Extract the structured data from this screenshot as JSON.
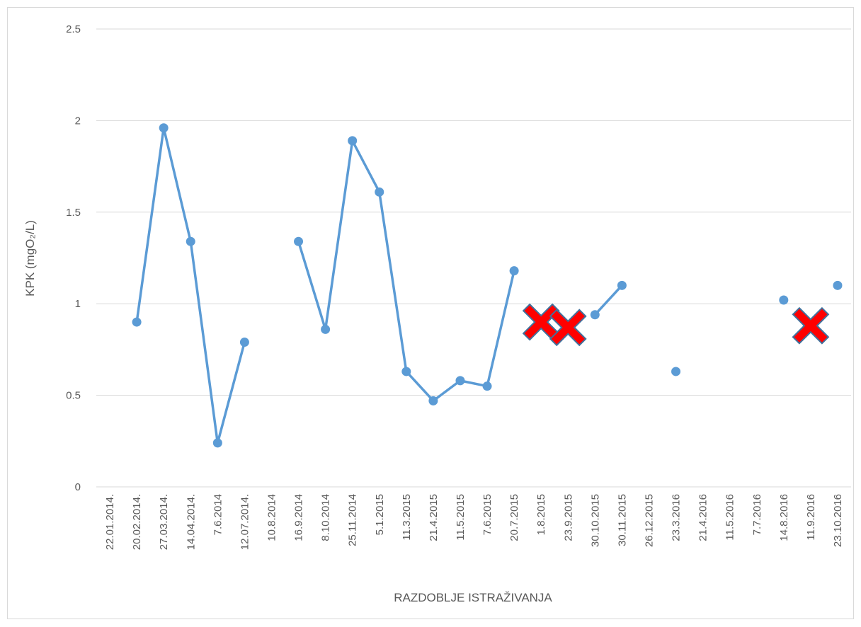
{
  "chart_data": {
    "type": "line",
    "xlabel": "RAZDOBLJE ISTRAŽIVANJA",
    "ylabel": "KPK (mgO₂/L)",
    "categories": [
      "22.01.2014.",
      "20.02.2014.",
      "27.03.2014.",
      "14.04.2014.",
      "7.6.2014",
      "12.07.2014.",
      "10.8.2014",
      "16.9.2014",
      "8.10.2014",
      "25.11.2014",
      "5.1.2015",
      "11.3.2015",
      "21.4.2015",
      "11.5.2015",
      "7.6.2015",
      "20.7.2015",
      "1.8.2015",
      "23.9.2015",
      "30.10.2015",
      "30.11.2015",
      "26.12.2015",
      "23.3.2016",
      "21.4.2016",
      "11.5.2016",
      "7.7.2016",
      "14.8.2016",
      "11.9.2016",
      "23.10.2016"
    ],
    "series": [
      {
        "color": "#5b9bd5",
        "values": [
          null,
          0.9,
          1.96,
          1.34,
          0.24,
          0.79,
          null,
          1.34,
          0.86,
          1.89,
          1.61,
          0.63,
          0.47,
          0.58,
          0.55,
          1.18,
          null,
          null,
          0.94,
          1.1,
          null,
          0.63,
          null,
          null,
          null,
          1.02,
          null,
          1.1
        ]
      },
      {
        "color": "#ff0000",
        "marker": "x",
        "values": [
          null,
          null,
          null,
          null,
          null,
          null,
          null,
          null,
          null,
          null,
          null,
          null,
          null,
          null,
          null,
          null,
          0.9,
          0.87,
          null,
          null,
          null,
          null,
          null,
          null,
          null,
          null,
          0.88,
          null
        ]
      }
    ],
    "ylim": [
      0,
      2.5
    ],
    "yticks": [
      0,
      0.5,
      1,
      1.5,
      2,
      2.5
    ],
    "grid": true
  }
}
